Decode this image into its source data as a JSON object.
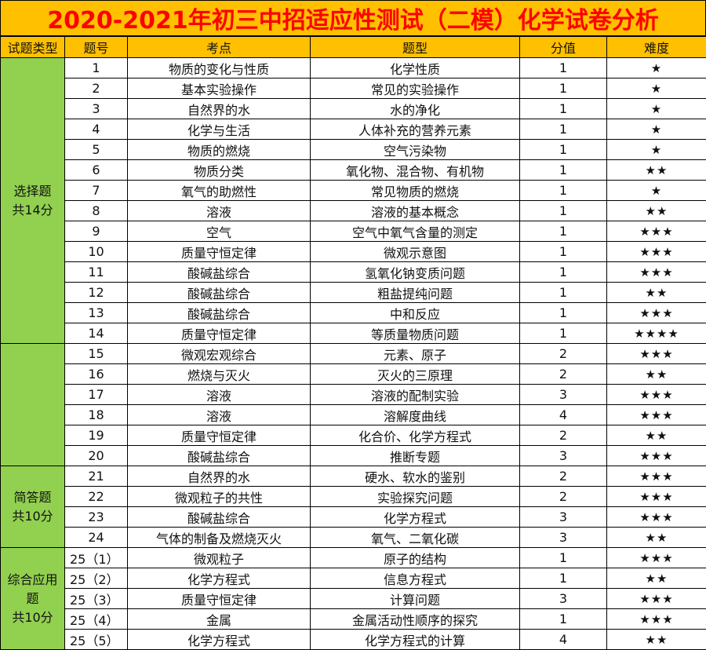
{
  "title": "2020-2021年初三中招适应性测试（二模）化学试卷分析",
  "headers": [
    "试题类型",
    "题号",
    "考点",
    "题型",
    "分值",
    "难度"
  ],
  "colors": {
    "title_bg": "#ffc000",
    "title_text": "#ff0000",
    "category_bg": "#92d050"
  },
  "groups": [
    {
      "label_lines": [
        "选择题",
        "共14分"
      ],
      "rows": [
        {
          "no": "1",
          "point": "物质的变化与性质",
          "type": "化学性质",
          "score": "1",
          "difficulty": "★"
        },
        {
          "no": "2",
          "point": "基本实验操作",
          "type": "常见的实验操作",
          "score": "1",
          "difficulty": "★"
        },
        {
          "no": "3",
          "point": "自然界的水",
          "type": "水的净化",
          "score": "1",
          "difficulty": "★"
        },
        {
          "no": "4",
          "point": "化学与生活",
          "type": "人体补充的营养元素",
          "score": "1",
          "difficulty": "★"
        },
        {
          "no": "5",
          "point": "物质的燃烧",
          "type": "空气污染物",
          "score": "1",
          "difficulty": "★"
        },
        {
          "no": "6",
          "point": "物质分类",
          "type": "氧化物、混合物、有机物",
          "score": "1",
          "difficulty": "★★"
        },
        {
          "no": "7",
          "point": "氧气的助燃性",
          "type": "常见物质的燃烧",
          "score": "1",
          "difficulty": "★"
        },
        {
          "no": "8",
          "point": "溶液",
          "type": "溶液的基本概念",
          "score": "1",
          "difficulty": "★★"
        },
        {
          "no": "9",
          "point": "空气",
          "type": "空气中氧气含量的测定",
          "score": "1",
          "difficulty": "★★★"
        },
        {
          "no": "10",
          "point": "质量守恒定律",
          "type": "微观示意图",
          "score": "1",
          "difficulty": "★★★"
        },
        {
          "no": "11",
          "point": "酸碱盐综合",
          "type": "氢氧化钠变质问题",
          "score": "1",
          "difficulty": "★★★"
        },
        {
          "no": "12",
          "point": "酸碱盐综合",
          "type": "粗盐提纯问题",
          "score": "1",
          "difficulty": "★★"
        },
        {
          "no": "13",
          "point": "酸碱盐综合",
          "type": "中和反应",
          "score": "1",
          "difficulty": "★★★"
        },
        {
          "no": "14",
          "point": "质量守恒定律",
          "type": "等质量物质问题",
          "score": "1",
          "difficulty": "★★★★"
        }
      ]
    },
    {
      "label_lines": [],
      "rows": [
        {
          "no": "15",
          "point": "微观宏观综合",
          "type": "元素、原子",
          "score": "2",
          "difficulty": "★★★"
        },
        {
          "no": "16",
          "point": "燃烧与灭火",
          "type": "灭火的三原理",
          "score": "2",
          "difficulty": "★★"
        },
        {
          "no": "17",
          "point": "溶液",
          "type": "溶液的配制实验",
          "score": "3",
          "difficulty": "★★★"
        },
        {
          "no": "18",
          "point": "溶液",
          "type": "溶解度曲线",
          "score": "4",
          "difficulty": "★★★"
        },
        {
          "no": "19",
          "point": "质量守恒定律",
          "type": "化合价、化学方程式",
          "score": "2",
          "difficulty": "★★"
        },
        {
          "no": "20",
          "point": "酸碱盐综合",
          "type": "推断专题",
          "score": "3",
          "difficulty": "★★★"
        }
      ]
    },
    {
      "label_lines": [
        "简答题",
        "共10分"
      ],
      "rows": [
        {
          "no": "21",
          "point": "自然界的水",
          "type": "硬水、软水的鉴别",
          "score": "2",
          "difficulty": "★★★"
        },
        {
          "no": "22",
          "point": "微观粒子的共性",
          "type": "实验探究问题",
          "score": "2",
          "difficulty": "★★★"
        },
        {
          "no": "23",
          "point": "酸碱盐综合",
          "type": "化学方程式",
          "score": "3",
          "difficulty": "★★★"
        },
        {
          "no": "24",
          "point": "气体的制备及燃烧灭火",
          "type": "氧气、二氧化碳",
          "score": "3",
          "difficulty": "★★"
        }
      ]
    },
    {
      "label_lines": [
        "综合应用",
        "题",
        "共10分"
      ],
      "rows": [
        {
          "no": "25（1）",
          "point": "微观粒子",
          "type": "原子的结构",
          "score": "1",
          "difficulty": "★★★"
        },
        {
          "no": "25（2）",
          "point": "化学方程式",
          "type": "信息方程式",
          "score": "1",
          "difficulty": "★★"
        },
        {
          "no": "25（3）",
          "point": "质量守恒定律",
          "type": "计算问题",
          "score": "3",
          "difficulty": "★★★"
        },
        {
          "no": "25（4）",
          "point": "金属",
          "type": "金属活动性顺序的探究",
          "score": "1",
          "difficulty": "★★★"
        },
        {
          "no": "25（5）",
          "point": "化学方程式",
          "type": "化学方程式的计算",
          "score": "4",
          "difficulty": "★★"
        }
      ]
    }
  ]
}
